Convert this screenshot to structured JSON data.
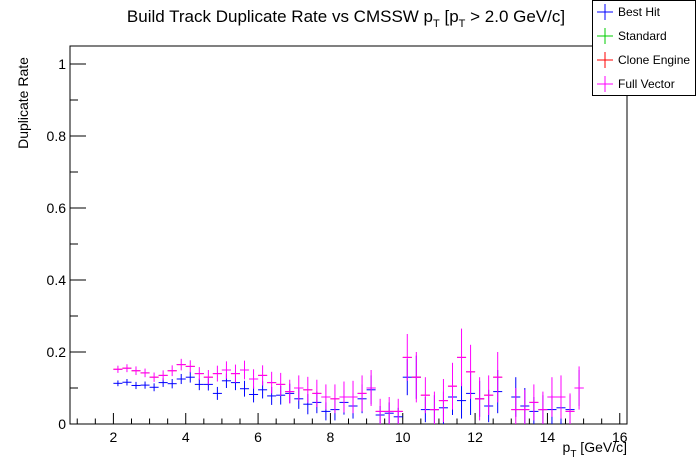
{
  "chart_data": {
    "type": "scatter",
    "title": {
      "main": "Build Track Duplicate Rate vs CMSSW p",
      "sub1": "T",
      "mid": " [p",
      "sub2": "T",
      "end": " > 2.0 GeV/c]"
    },
    "xlabel": {
      "main": "p",
      "sub": "T",
      "end": " [GeV/c]"
    },
    "ylabel": "Duplicate Rate",
    "xlim": [
      0.8,
      16.2
    ],
    "ylim": [
      0,
      1.05
    ],
    "x_ticks": [
      2,
      4,
      6,
      8,
      10,
      12,
      14,
      16
    ],
    "y_ticks": [
      0,
      0.2,
      0.4,
      0.6,
      0.8,
      1
    ],
    "x_tick_labels": [
      "2",
      "4",
      "6",
      "8",
      "10",
      "12",
      "14",
      "16"
    ],
    "y_tick_labels": [
      "0",
      "0.2",
      "0.4",
      "0.6",
      "0.8",
      "1"
    ],
    "grid": false,
    "legend_position": "top-right",
    "bin_half_width": 0.125,
    "series": [
      {
        "name": "Best Hit",
        "color": "#0000ff",
        "x": [
          2.125,
          2.375,
          2.625,
          2.875,
          3.125,
          3.375,
          3.625,
          3.875,
          4.125,
          4.375,
          4.625,
          4.875,
          5.125,
          5.375,
          5.625,
          5.875,
          6.125,
          6.375,
          6.625,
          6.875,
          7.125,
          7.375,
          7.625,
          7.875,
          8.125,
          8.375,
          8.625,
          8.875,
          9.125,
          9.375,
          9.625,
          9.875,
          10.125,
          10.375,
          10.625,
          10.875,
          11.125,
          11.375,
          11.625,
          11.875,
          12.125,
          12.375,
          12.625,
          13.125,
          13.375,
          13.625,
          13.875,
          14.125,
          14.375,
          14.625,
          14.875
        ],
        "y": [
          0.113,
          0.116,
          0.107,
          0.108,
          0.102,
          0.115,
          0.112,
          0.125,
          0.13,
          0.11,
          0.11,
          0.085,
          0.12,
          0.115,
          0.098,
          0.082,
          0.095,
          0.078,
          0.08,
          0.085,
          0.07,
          0.055,
          0.06,
          0.035,
          0.04,
          0.06,
          0.05,
          0.07,
          0.095,
          0.025,
          0.03,
          0.02,
          0.13,
          0.13,
          0.04,
          0.04,
          0.045,
          0.075,
          0.065,
          0.085,
          0.07,
          0.05,
          0.09,
          0.075,
          0.05,
          0.035,
          0.04,
          0.04,
          0.045,
          0.04,
          0.1
        ],
        "err": [
          0.008,
          0.009,
          0.01,
          0.01,
          0.011,
          0.012,
          0.013,
          0.014,
          0.015,
          0.016,
          0.017,
          0.018,
          0.02,
          0.021,
          0.022,
          0.022,
          0.024,
          0.025,
          0.026,
          0.027,
          0.028,
          0.028,
          0.03,
          0.025,
          0.03,
          0.034,
          0.035,
          0.04,
          0.04,
          0.025,
          0.03,
          0.025,
          0.05,
          0.06,
          0.035,
          0.04,
          0.045,
          0.05,
          0.05,
          0.06,
          0.05,
          0.045,
          0.06,
          0.055,
          0.05,
          0.04,
          0.04,
          0.04,
          0.045,
          0.04,
          0.05
        ]
      },
      {
        "name": "Standard",
        "color": "#00cc00",
        "x": [],
        "y": [],
        "err": []
      },
      {
        "name": "Clone Engine",
        "color": "#ff0000",
        "x": [
          2.125,
          2.375,
          2.625,
          2.875,
          3.125,
          3.375,
          3.625,
          3.875,
          4.125,
          4.375,
          4.625,
          4.875,
          5.125,
          5.375,
          5.625,
          5.875,
          6.125,
          6.375,
          6.625,
          6.875,
          7.125,
          7.375,
          7.625,
          7.875,
          8.125,
          8.375,
          8.625,
          8.875,
          9.125,
          9.375,
          9.625,
          9.875,
          10.125,
          10.375,
          10.625,
          10.875,
          11.125,
          11.375,
          11.625,
          11.875,
          12.125,
          12.375,
          12.625,
          13.125,
          13.375,
          13.625,
          13.875,
          14.125,
          14.375,
          14.625,
          14.875
        ],
        "y": [
          0.152,
          0.155,
          0.148,
          0.142,
          0.13,
          0.135,
          0.148,
          0.165,
          0.16,
          0.14,
          0.13,
          0.14,
          0.15,
          0.14,
          0.15,
          0.125,
          0.135,
          0.115,
          0.11,
          0.09,
          0.1,
          0.095,
          0.085,
          0.075,
          0.07,
          0.075,
          0.075,
          0.085,
          0.1,
          0.035,
          0.035,
          0.035,
          0.185,
          0.13,
          0.08,
          0.04,
          0.065,
          0.105,
          0.185,
          0.145,
          0.07,
          0.08,
          0.13,
          0.04,
          0.04,
          0.06,
          0.04,
          0.075,
          0.075,
          0.035,
          0.1
        ]
      },
      {
        "name": "Full Vector",
        "color": "#ff00ff",
        "x": [
          2.125,
          2.375,
          2.625,
          2.875,
          3.125,
          3.375,
          3.625,
          3.875,
          4.125,
          4.375,
          4.625,
          4.875,
          5.125,
          5.375,
          5.625,
          5.875,
          6.125,
          6.375,
          6.625,
          6.875,
          7.125,
          7.375,
          7.625,
          7.875,
          8.125,
          8.375,
          8.625,
          8.875,
          9.125,
          9.375,
          9.625,
          9.875,
          10.125,
          10.375,
          10.625,
          10.875,
          11.125,
          11.375,
          11.625,
          11.875,
          12.125,
          12.375,
          12.625,
          13.125,
          13.375,
          13.625,
          13.875,
          14.125,
          14.375,
          14.625,
          14.875
        ],
        "y": [
          0.152,
          0.155,
          0.148,
          0.142,
          0.13,
          0.135,
          0.148,
          0.165,
          0.16,
          0.14,
          0.13,
          0.14,
          0.15,
          0.14,
          0.15,
          0.125,
          0.135,
          0.115,
          0.11,
          0.09,
          0.1,
          0.095,
          0.085,
          0.075,
          0.07,
          0.075,
          0.075,
          0.085,
          0.1,
          0.035,
          0.035,
          0.035,
          0.185,
          0.13,
          0.08,
          0.04,
          0.065,
          0.105,
          0.185,
          0.145,
          0.07,
          0.08,
          0.13,
          0.04,
          0.04,
          0.06,
          0.04,
          0.075,
          0.075,
          0.035,
          0.1
        ],
        "err": [
          0.01,
          0.011,
          0.012,
          0.012,
          0.013,
          0.014,
          0.015,
          0.016,
          0.017,
          0.018,
          0.02,
          0.022,
          0.024,
          0.025,
          0.026,
          0.027,
          0.028,
          0.03,
          0.032,
          0.033,
          0.035,
          0.036,
          0.038,
          0.035,
          0.04,
          0.043,
          0.045,
          0.05,
          0.05,
          0.035,
          0.04,
          0.035,
          0.065,
          0.07,
          0.05,
          0.05,
          0.06,
          0.065,
          0.08,
          0.075,
          0.06,
          0.055,
          0.07,
          0.06,
          0.055,
          0.05,
          0.05,
          0.055,
          0.06,
          0.05,
          0.06
        ]
      }
    ]
  }
}
